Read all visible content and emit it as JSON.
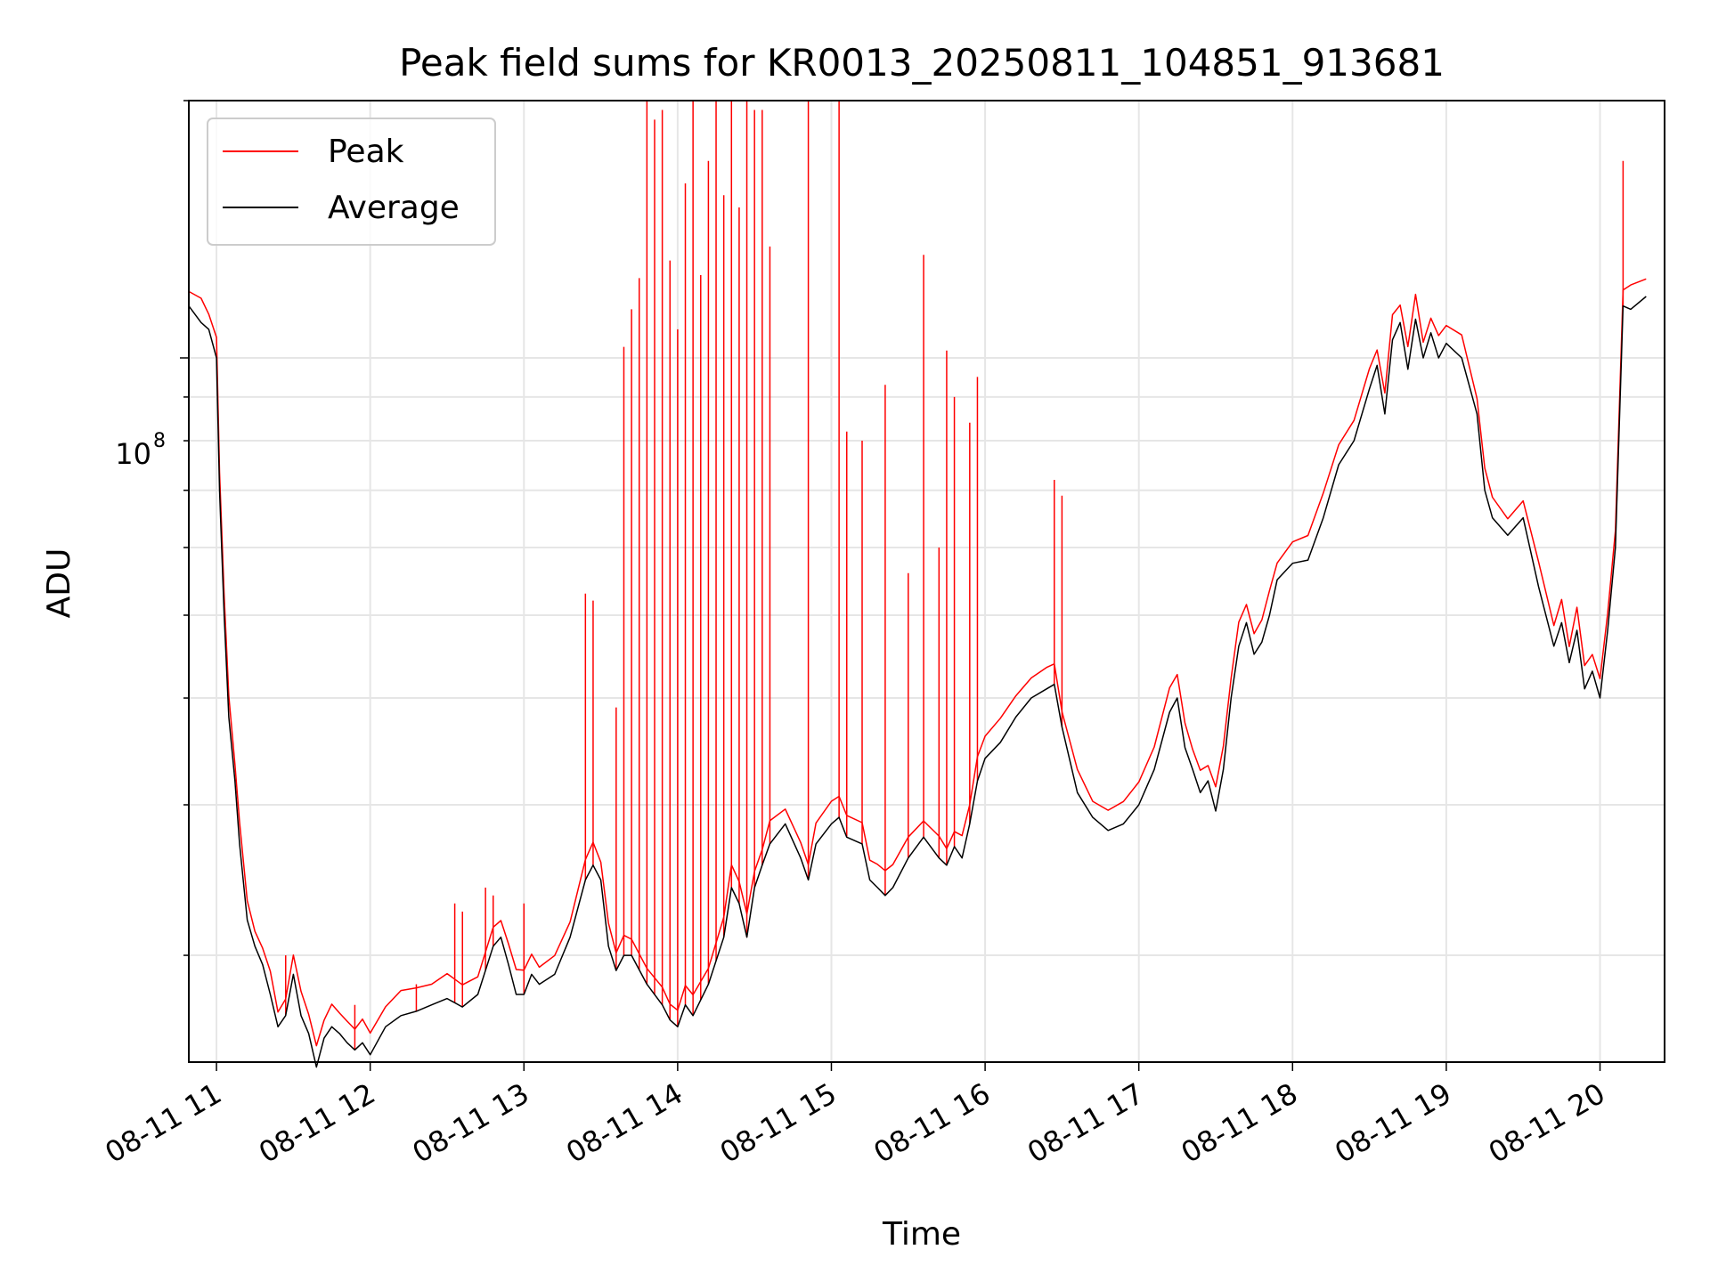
{
  "chart_data": {
    "type": "line",
    "title": "Peak field sums for KR0013_20250811_104851_913681",
    "xlabel": "Time",
    "ylabel": "ADU",
    "yscale": "log",
    "ylim": [
      15000000,
      200000000
    ],
    "xlim": [
      "08-11 10:49",
      "08-11 20:25"
    ],
    "y_major_tick_labels": [
      "10",
      "8"
    ],
    "x_tick_labels": [
      "08-11 11",
      "08-11 12",
      "08-11 13",
      "08-11 14",
      "08-11 15",
      "08-11 16",
      "08-11 17",
      "08-11 18",
      "08-11 19",
      "08-11 20"
    ],
    "x_tick_hours": [
      11,
      12,
      13,
      14,
      15,
      16,
      17,
      18,
      19,
      20
    ],
    "grid": true,
    "legend_position": "top-left",
    "colors": {
      "peak": "#ff0000",
      "average": "#000000",
      "grid": "#e6e6e6"
    },
    "average_x_hours": [
      10.82,
      10.9,
      10.95,
      11.0,
      11.02,
      11.05,
      11.08,
      11.12,
      11.15,
      11.2,
      11.25,
      11.3,
      11.35,
      11.4,
      11.45,
      11.5,
      11.55,
      11.6,
      11.65,
      11.7,
      11.75,
      11.8,
      11.85,
      11.9,
      11.95,
      12.0,
      12.1,
      12.2,
      12.3,
      12.4,
      12.5,
      12.6,
      12.7,
      12.8,
      12.85,
      12.9,
      12.95,
      13.0,
      13.05,
      13.1,
      13.2,
      13.3,
      13.4,
      13.45,
      13.5,
      13.55,
      13.6,
      13.65,
      13.7,
      13.8,
      13.9,
      13.95,
      14.0,
      14.05,
      14.1,
      14.2,
      14.3,
      14.35,
      14.4,
      14.45,
      14.5,
      14.55,
      14.6,
      14.7,
      14.8,
      14.85,
      14.9,
      15.0,
      15.05,
      15.1,
      15.2,
      15.25,
      15.3,
      15.35,
      15.4,
      15.5,
      15.6,
      15.7,
      15.75,
      15.8,
      15.85,
      15.9,
      15.95,
      16.0,
      16.1,
      16.2,
      16.3,
      16.4,
      16.45,
      16.5,
      16.6,
      16.7,
      16.8,
      16.9,
      17.0,
      17.1,
      17.2,
      17.25,
      17.3,
      17.35,
      17.4,
      17.45,
      17.5,
      17.55,
      17.6,
      17.65,
      17.7,
      17.75,
      17.8,
      17.85,
      17.9,
      18.0,
      18.1,
      18.2,
      18.3,
      18.4,
      18.5,
      18.55,
      18.6,
      18.65,
      18.7,
      18.75,
      18.8,
      18.85,
      18.9,
      18.95,
      19.0,
      19.1,
      19.2,
      19.25,
      19.3,
      19.4,
      19.5,
      19.6,
      19.7,
      19.75,
      19.8,
      19.85,
      19.9,
      19.95,
      20.0,
      20.05,
      20.1,
      20.15,
      20.2,
      20.3,
      20.4
    ],
    "average_adu": [
      115000000,
      110000000,
      108000000,
      100000000,
      70000000,
      50000000,
      38000000,
      32000000,
      27000000,
      22000000,
      20500000,
      19500000,
      18000000,
      16500000,
      17000000,
      19000000,
      17000000,
      16200000,
      14800000,
      16000000,
      16500000,
      16200000,
      15800000,
      15500000,
      15800000,
      15300000,
      16500000,
      17000000,
      17200000,
      17500000,
      17800000,
      17400000,
      18000000,
      20500000,
      21000000,
      19500000,
      18000000,
      18000000,
      19000000,
      18500000,
      19000000,
      21000000,
      24500000,
      25500000,
      24500000,
      20500000,
      19200000,
      20000000,
      20000000,
      18500000,
      17500000,
      16800000,
      16500000,
      17500000,
      17000000,
      18500000,
      21000000,
      24000000,
      23000000,
      21000000,
      24000000,
      25500000,
      27000000,
      28500000,
      26000000,
      24500000,
      27000000,
      28500000,
      29000000,
      27500000,
      27000000,
      24500000,
      24000000,
      23500000,
      24000000,
      26000000,
      27500000,
      26000000,
      25500000,
      26800000,
      26000000,
      28500000,
      32000000,
      34000000,
      35500000,
      38000000,
      40000000,
      41000000,
      41500000,
      37000000,
      31000000,
      29000000,
      28000000,
      28500000,
      30000000,
      33000000,
      38500000,
      40000000,
      35000000,
      33000000,
      31000000,
      32000000,
      29500000,
      33000000,
      40000000,
      46000000,
      49000000,
      45000000,
      46500000,
      50000000,
      55000000,
      57500000,
      58000000,
      65000000,
      75000000,
      80000000,
      92000000,
      98000000,
      86000000,
      105000000,
      110000000,
      97000000,
      111000000,
      100000000,
      107000000,
      100000000,
      104000000,
      100000000,
      86000000,
      70000000,
      65000000,
      62000000,
      65000000,
      54000000,
      46000000,
      49000000,
      44000000,
      48000000,
      41000000,
      43000000,
      40000000,
      48000000,
      60000000,
      115000000,
      114000000,
      118000000
    ],
    "peak_spikes_hours": [
      11.45,
      11.9,
      12.3,
      12.55,
      12.6,
      12.75,
      12.8,
      13.0,
      13.4,
      13.45,
      13.6,
      13.65,
      13.7,
      13.75,
      13.8,
      13.85,
      13.9,
      13.95,
      14.0,
      14.05,
      14.1,
      14.15,
      14.2,
      14.25,
      14.3,
      14.35,
      14.4,
      14.45,
      14.5,
      14.55,
      14.6,
      14.85,
      15.05,
      15.1,
      15.2,
      15.35,
      15.5,
      15.6,
      15.7,
      15.75,
      15.8,
      15.9,
      15.95,
      16.45,
      16.5,
      20.15
    ],
    "peak_spikes_adu": [
      20000000,
      17500000,
      18500000,
      23000000,
      22500000,
      24000000,
      23500000,
      23000000,
      53000000,
      52000000,
      39000000,
      103000000,
      114000000,
      124000000,
      200000000,
      190000000,
      195000000,
      130000000,
      108000000,
      160000000,
      200000000,
      125000000,
      170000000,
      200000000,
      155000000,
      200000000,
      150000000,
      200000000,
      195000000,
      195000000,
      135000000,
      200000000,
      200000000,
      82000000,
      80000000,
      93000000,
      56000000,
      132000000,
      60000000,
      102000000,
      90000000,
      84000000,
      95000000,
      72000000,
      69000000,
      170000000
    ]
  },
  "legend": {
    "peak_label": "Peak",
    "average_label": "Average"
  }
}
